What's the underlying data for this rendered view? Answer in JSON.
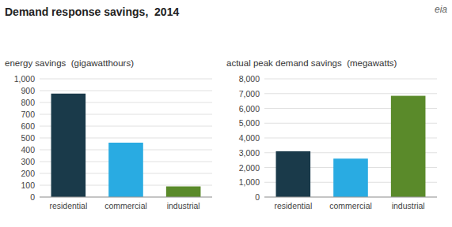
{
  "chart_data": [
    {
      "type": "bar",
      "title": "Demand response savings,  2014",
      "subtitle": "energy savings  (gigawatthours)",
      "annotations": [
        "eia"
      ],
      "categories": [
        "residential",
        "commercial",
        "industrial"
      ],
      "values": [
        875,
        460,
        90
      ],
      "colors": [
        "#1a3a4a",
        "#29abe2",
        "#5a8a2a"
      ],
      "ylim": [
        0,
        1000
      ],
      "yticks": [
        0,
        100,
        200,
        300,
        400,
        500,
        600,
        700,
        800,
        900,
        {
          "value": 1000,
          "label": "1,000"
        }
      ],
      "grid": true
    },
    {
      "type": "bar",
      "subtitle": "actual peak demand savings  (megawatts)",
      "categories": [
        "residential",
        "commercial",
        "industrial"
      ],
      "values": [
        3100,
        2600,
        6850
      ],
      "colors": [
        "#1a3a4a",
        "#29abe2",
        "#5a8a2a"
      ],
      "ylim": [
        0,
        8000
      ],
      "yticks": [
        0,
        {
          "value": 1000,
          "label": "1,000"
        },
        {
          "value": 2000,
          "label": "2,000"
        },
        {
          "value": 3000,
          "label": "3,000"
        },
        {
          "value": 4000,
          "label": "4,000"
        },
        {
          "value": 5000,
          "label": "5,000"
        },
        {
          "value": 6000,
          "label": "6,000"
        },
        {
          "value": 7000,
          "label": "7,000"
        },
        {
          "value": 8000,
          "label": "8,000"
        }
      ],
      "grid": true
    }
  ]
}
